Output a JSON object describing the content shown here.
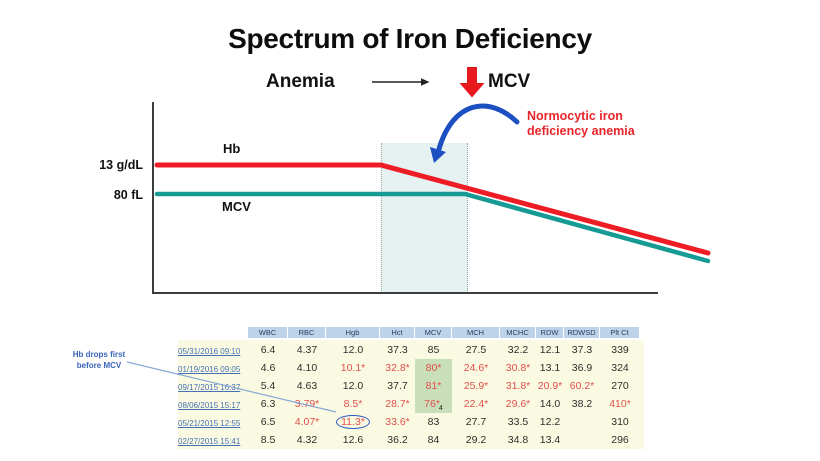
{
  "title": "Spectrum of Iron Deficiency",
  "subtitle": {
    "anemia": "Anemia",
    "mcv": "MCV"
  },
  "chart": {
    "hb_label": "Hb",
    "mcv_label": "MCV",
    "hb_ref": "13 g/dL",
    "mcv_ref": "80 fL",
    "annotation_line1": "Normocytic iron",
    "annotation_line2": "deficiency anemia",
    "colors": {
      "hb_line": "#ee1c24",
      "mcv_line": "#169a94",
      "band": "#e6f1f2",
      "annotation_text": "#e8252b",
      "callout_arrow": "#1c4fc0"
    }
  },
  "chart_data": {
    "type": "line",
    "title": "Spectrum of Iron Deficiency",
    "series": [
      {
        "name": "Hb",
        "reference_label": "13 g/dL",
        "points_rel": [
          [
            0.0,
            1.0
          ],
          [
            0.41,
            1.0
          ],
          [
            1.0,
            0.42
          ]
        ]
      },
      {
        "name": "MCV",
        "reference_label": "80 fL",
        "points_rel": [
          [
            0.0,
            1.0
          ],
          [
            0.56,
            1.0
          ],
          [
            1.0,
            0.56
          ]
        ]
      }
    ],
    "shaded_band_rel": [
      0.41,
      0.56
    ],
    "annotation": "Normocytic iron deficiency anemia",
    "legend_position": "on-line labels",
    "grid": false
  },
  "table": {
    "note_line1": "Hb drops first",
    "note_line2": "before MCV",
    "columns": [
      "WBC",
      "RBC",
      "Hgb",
      "Hct",
      "MCV",
      "MCH",
      "MCHC",
      "RDW",
      "RDWSD",
      "Plt Ct"
    ],
    "rows": [
      {
        "date": "05/31/2016 09:10",
        "cells": [
          {
            "t": "6.4"
          },
          {
            "t": "4.37"
          },
          {
            "t": "12.0"
          },
          {
            "t": "37.3"
          },
          {
            "t": "85"
          },
          {
            "t": "27.5"
          },
          {
            "t": "32.2"
          },
          {
            "t": "12.1"
          },
          {
            "t": "37.3"
          },
          {
            "t": "339"
          }
        ]
      },
      {
        "date": "01/19/2016 09:05",
        "cells": [
          {
            "t": "4.6"
          },
          {
            "t": "4.10"
          },
          {
            "t": "10.1*",
            "a": true
          },
          {
            "t": "32.8*",
            "a": true
          },
          {
            "t": "80*",
            "a": true,
            "g": true
          },
          {
            "t": "24.6*",
            "a": true
          },
          {
            "t": "30.8*",
            "a": true
          },
          {
            "t": "13.1"
          },
          {
            "t": "36.9"
          },
          {
            "t": "324"
          }
        ]
      },
      {
        "date": "09/17/2015 16:37",
        "cells": [
          {
            "t": "5.4"
          },
          {
            "t": "4.63"
          },
          {
            "t": "12.0"
          },
          {
            "t": "37.7"
          },
          {
            "t": "81*",
            "a": true,
            "g": true
          },
          {
            "t": "25.9*",
            "a": true
          },
          {
            "t": "31.8*",
            "a": true
          },
          {
            "t": "20.9*",
            "a": true
          },
          {
            "t": "60.2*",
            "a": true
          },
          {
            "t": "270"
          }
        ]
      },
      {
        "date": "08/06/2015 15:17",
        "cells": [
          {
            "t": "6.3"
          },
          {
            "t": "3.79*",
            "a": true
          },
          {
            "t": "8.5*",
            "a": true
          },
          {
            "t": "28.7*",
            "a": true
          },
          {
            "t": "76*",
            "a": true,
            "g": true,
            "sub": "4"
          },
          {
            "t": "22.4*",
            "a": true
          },
          {
            "t": "29.6*",
            "a": true
          },
          {
            "t": "14.0"
          },
          {
            "t": "38.2"
          },
          {
            "t": "410*",
            "a": true
          }
        ]
      },
      {
        "date": "05/21/2015 12:55",
        "cells": [
          {
            "t": "6.5"
          },
          {
            "t": "4.07*",
            "a": true
          },
          {
            "t": "11.3*",
            "a": true,
            "c": true
          },
          {
            "t": "33.6*",
            "a": true
          },
          {
            "t": "83"
          },
          {
            "t": "27.7"
          },
          {
            "t": "33.5"
          },
          {
            "t": "12.2"
          },
          {
            "t": ""
          },
          {
            "t": "310"
          }
        ]
      },
      {
        "date": "02/27/2015 15:41",
        "cells": [
          {
            "t": "8.5"
          },
          {
            "t": "4.32"
          },
          {
            "t": "12.6"
          },
          {
            "t": "36.2"
          },
          {
            "t": "84"
          },
          {
            "t": "29.2"
          },
          {
            "t": "34.8"
          },
          {
            "t": "13.4"
          },
          {
            "t": ""
          },
          {
            "t": "296"
          }
        ]
      }
    ],
    "colors": {
      "header_bg": "#bdd3ea",
      "body_bg": "#faf9e1",
      "abnormal_text": "#e0504d",
      "highlight_cell": "#c9dfba",
      "date_link": "#4672b5"
    }
  }
}
